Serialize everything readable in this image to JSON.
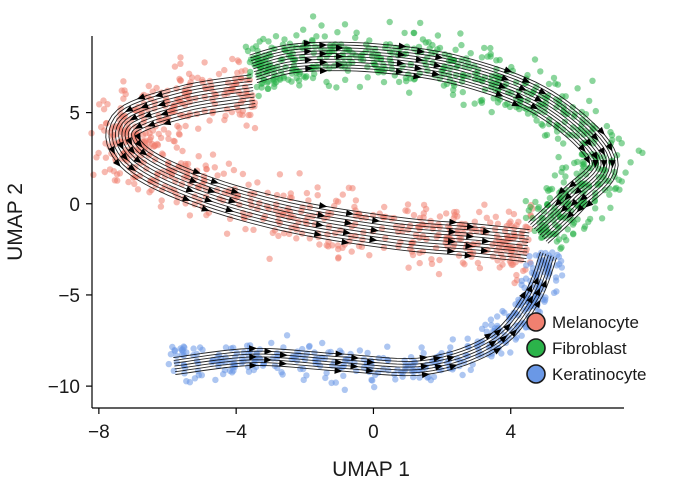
{
  "chart_data": {
    "type": "scatter",
    "xlabel": "UMAP 1",
    "ylabel": "UMAP 2",
    "xlim": [
      -8.2,
      7.3
    ],
    "ylim": [
      -11.2,
      9.2
    ],
    "xticks": [
      -8,
      -4,
      0,
      4
    ],
    "xtick_labels": [
      "−8",
      "−4",
      "0",
      "4"
    ],
    "yticks": [
      5,
      0,
      -5,
      -10
    ],
    "ytick_labels": [
      "5",
      "0",
      "−5",
      "−10"
    ],
    "grid": false,
    "legend_position": "bottom-right",
    "series": [
      {
        "name": "Melanocyte",
        "color": "#f08070",
        "trajectory": [
          [
            -3.5,
            6.2
          ],
          [
            -5.5,
            5.6
          ],
          [
            -7.2,
            4.4
          ],
          [
            -7.0,
            2.6
          ],
          [
            -5.3,
            0.9
          ],
          [
            -2.6,
            -0.6
          ],
          [
            0.6,
            -1.6
          ],
          [
            3.0,
            -2.0
          ],
          [
            4.5,
            -2.3
          ]
        ],
        "approx_points": 700
      },
      {
        "name": "Fibroblast",
        "color": "#2bb34a",
        "trajectory": [
          [
            -3.5,
            7.4
          ],
          [
            -2.2,
            8.0
          ],
          [
            0.0,
            8.0
          ],
          [
            2.5,
            7.3
          ],
          [
            5.0,
            5.5
          ],
          [
            6.7,
            2.4
          ],
          [
            5.8,
            0.2
          ],
          [
            4.8,
            -1.6
          ]
        ],
        "approx_points": 650
      },
      {
        "name": "Keratinocyte",
        "color": "#6a98e6",
        "trajectory": [
          [
            -5.8,
            -8.9
          ],
          [
            -3.5,
            -8.4
          ],
          [
            -1.0,
            -8.7
          ],
          [
            1.5,
            -8.9
          ],
          [
            3.5,
            -7.6
          ],
          [
            4.6,
            -5.2
          ],
          [
            5.1,
            -2.8
          ]
        ],
        "approx_points": 420
      }
    ]
  }
}
